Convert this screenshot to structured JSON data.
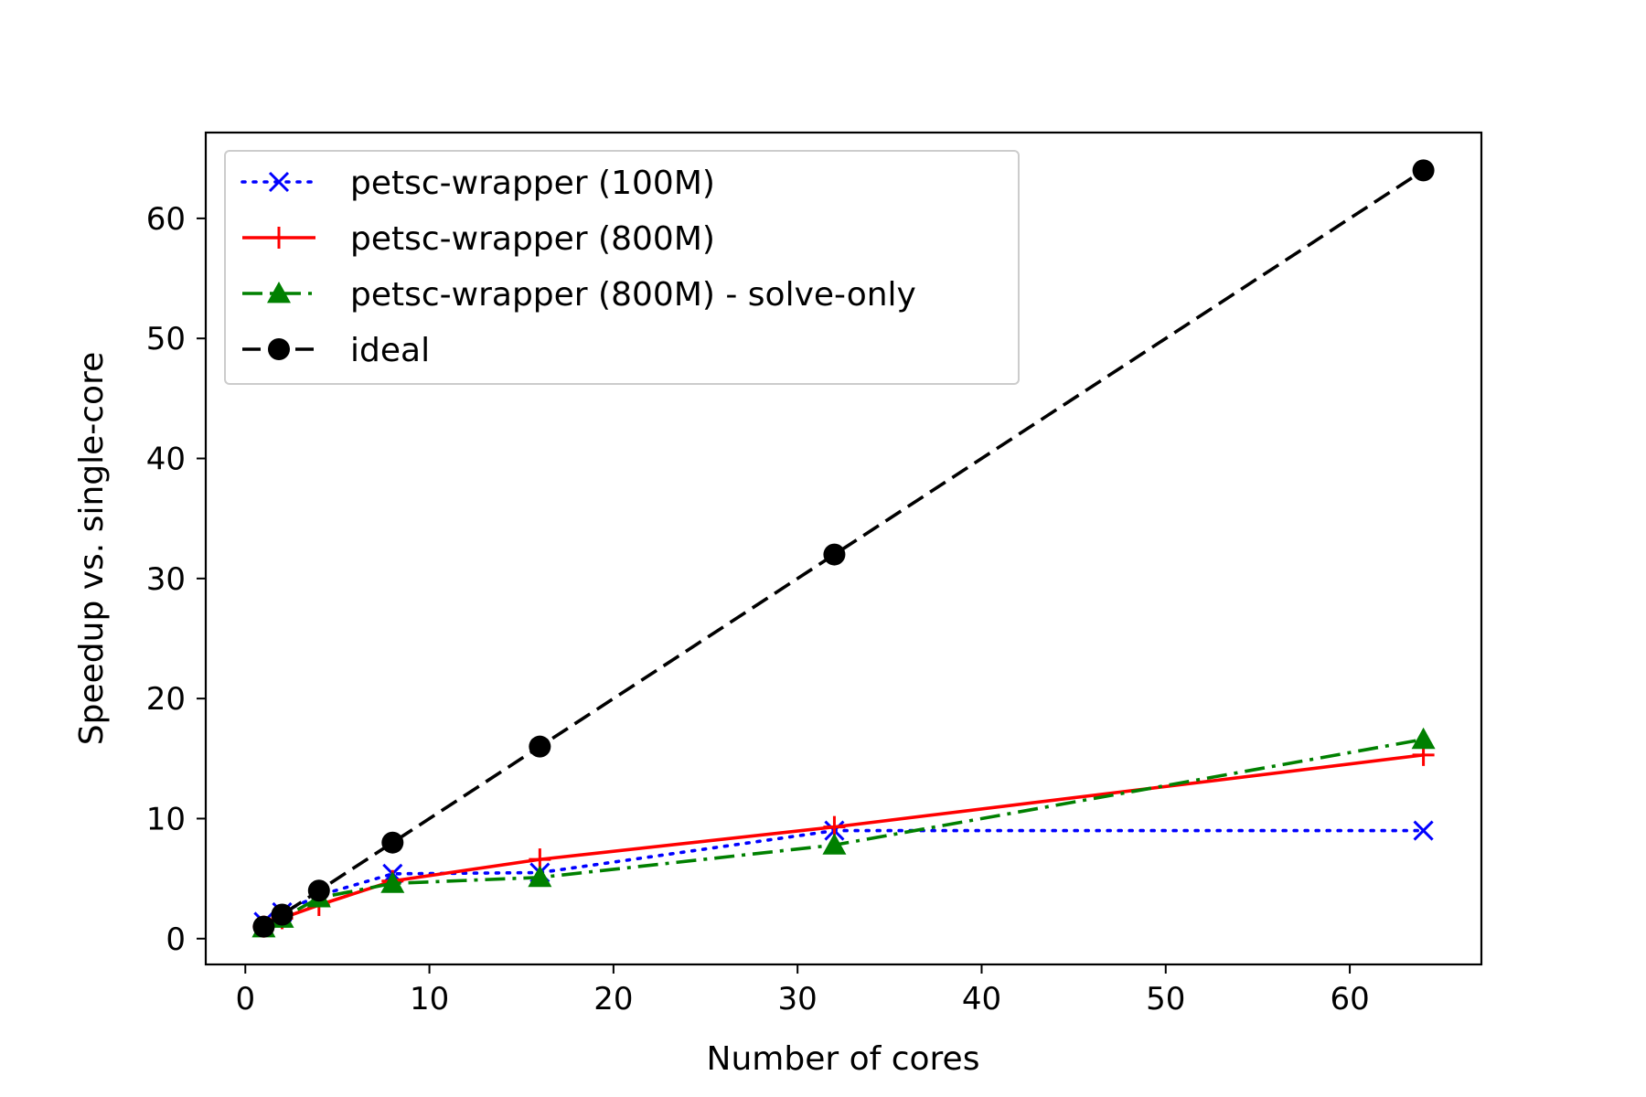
{
  "chart_data": {
    "type": "line",
    "title": "",
    "xlabel": "Number of cores",
    "ylabel": "Speedup vs. single-core",
    "xlim": [
      -2.15,
      67.15
    ],
    "ylim": [
      -2.15,
      67.15
    ],
    "xticks": [
      0,
      10,
      20,
      30,
      40,
      50,
      60
    ],
    "yticks": [
      0,
      10,
      20,
      30,
      40,
      50,
      60
    ],
    "grid": false,
    "legend_position": "upper-left",
    "series": [
      {
        "name": "petsc-wrapper (100M)",
        "color": "#0000ff",
        "line_style": "dotted",
        "marker": "x",
        "x": [
          1,
          2,
          4,
          8,
          16,
          32,
          64
        ],
        "y": [
          1.4,
          2.2,
          3.6,
          5.4,
          5.5,
          9.0,
          9.0
        ]
      },
      {
        "name": "petsc-wrapper (800M)",
        "color": "#ff0000",
        "line_style": "solid",
        "marker": "plus",
        "x": [
          1,
          2,
          4,
          8,
          16,
          32,
          64
        ],
        "y": [
          1.0,
          1.7,
          2.8,
          4.8,
          6.6,
          9.3,
          15.3
        ]
      },
      {
        "name": "petsc-wrapper (800M) - solve-only",
        "color": "#008000",
        "line_style": "dashdot",
        "marker": "triangle",
        "x": [
          1,
          2,
          4,
          8,
          16,
          32,
          64
        ],
        "y": [
          0.9,
          1.7,
          3.4,
          4.6,
          5.1,
          7.8,
          16.6
        ]
      },
      {
        "name": "ideal",
        "color": "#000000",
        "line_style": "dashed",
        "marker": "circle",
        "x": [
          1,
          2,
          4,
          8,
          16,
          32,
          64
        ],
        "y": [
          1,
          2,
          4,
          8,
          16,
          32,
          64
        ]
      }
    ]
  }
}
